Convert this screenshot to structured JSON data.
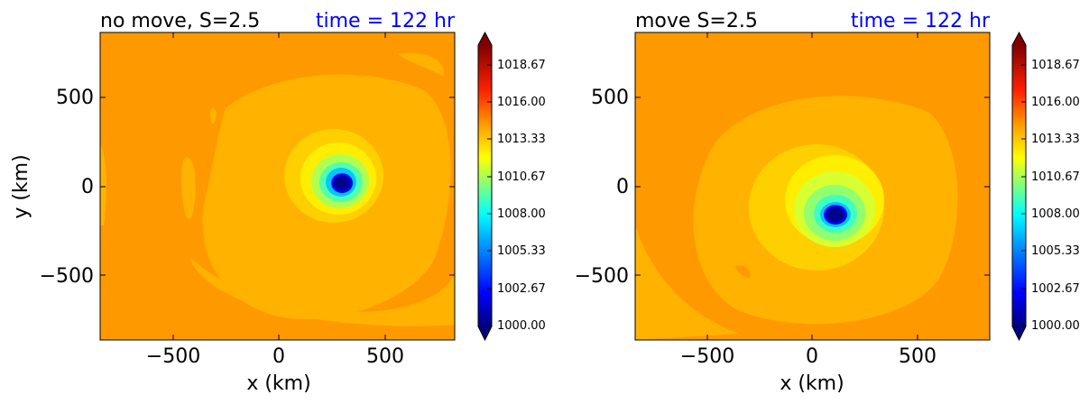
{
  "chart_data": [
    {
      "type": "heatmap",
      "title": "no move, S=2.5",
      "time_label": "time = 122 hr",
      "xlabel": "x (km)",
      "ylabel": "y (km)",
      "xlim": [
        -850,
        850
      ],
      "ylim": [
        -850,
        850
      ],
      "xticks": [
        -500,
        0,
        500
      ],
      "yticks": [
        -500,
        0,
        500
      ],
      "xtick_labels": [
        "−500",
        "0",
        "500"
      ],
      "ytick_labels": [
        "−500",
        "0",
        "500"
      ],
      "center": [
        300,
        25
      ],
      "min_pressure": 1000.0,
      "background_pressure": 1016.0,
      "colorbar": {
        "ticks": [
          "1000.00",
          "1002.67",
          "1005.33",
          "1008.00",
          "1010.67",
          "1013.33",
          "1016.00",
          "1018.67"
        ],
        "range": [
          1000,
          1020
        ]
      }
    },
    {
      "type": "heatmap",
      "title": "move S=2.5",
      "time_label": "time = 122 hr",
      "xlabel": "x (km)",
      "ylabel": "",
      "xlim": [
        -850,
        850
      ],
      "ylim": [
        -850,
        850
      ],
      "xticks": [
        -500,
        0,
        500
      ],
      "yticks": [
        -500,
        0,
        500
      ],
      "xtick_labels": [
        "−500",
        "0",
        "500"
      ],
      "ytick_labels": [
        "−500",
        "0",
        "500"
      ],
      "center": [
        115,
        -150
      ],
      "min_pressure": 1000.0,
      "background_pressure": 1016.0,
      "colorbar": {
        "ticks": [
          "1000.00",
          "1002.67",
          "1005.33",
          "1008.00",
          "1010.67",
          "1013.33",
          "1016.00",
          "1018.67"
        ],
        "range": [
          1000,
          1020
        ]
      }
    }
  ],
  "colors": {
    "title_time": "#0000ff",
    "background_orange": "#ff9900",
    "ring_light_orange": "#ffb300",
    "ring_yellow_orange": "#ffd000",
    "ring_yellow": "#ffee00",
    "core_blue": "#00008f"
  }
}
